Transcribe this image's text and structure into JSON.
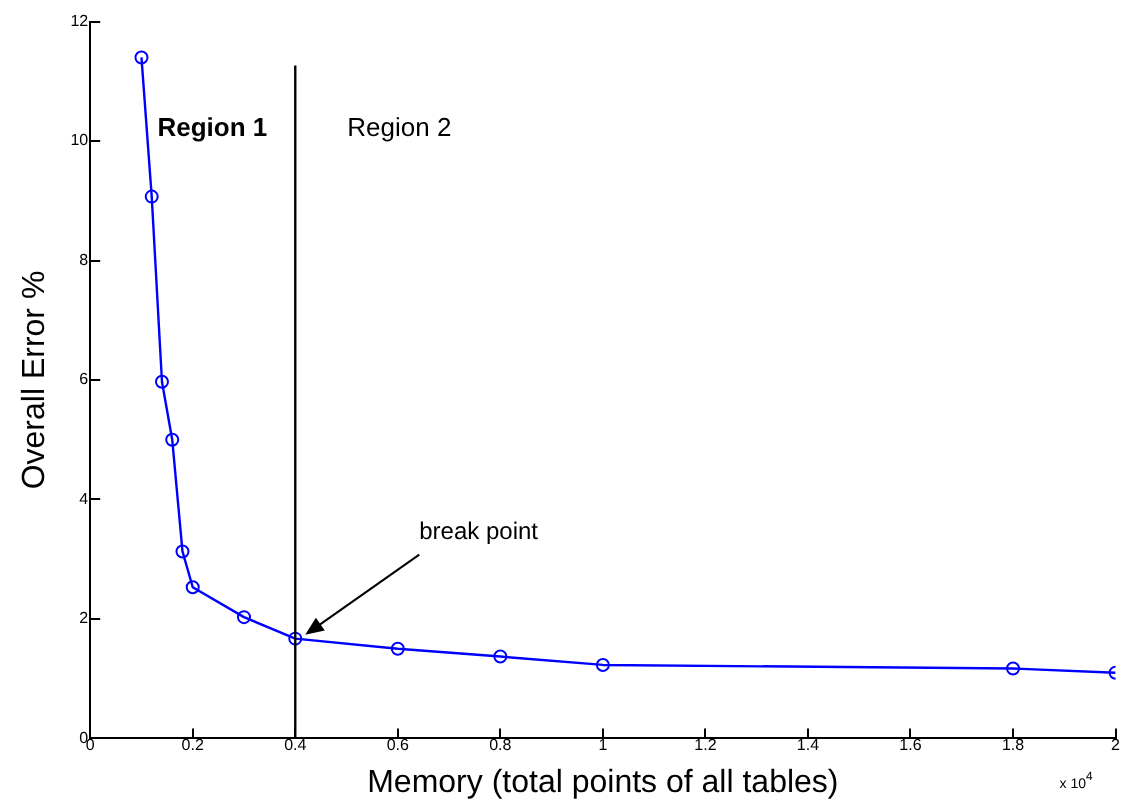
{
  "chart_data": {
    "type": "line",
    "xlabel": "Memory (total points of all tables)",
    "ylabel": "Overall Error %",
    "x": [
      0.1,
      0.12,
      0.14,
      0.16,
      0.18,
      0.2,
      0.3,
      0.4,
      0.6,
      0.8,
      1.0,
      1.8,
      2.0
    ],
    "series": [
      {
        "color": "#0000ff",
        "values": [
          11.4,
          9.07,
          5.97,
          5.0,
          3.13,
          2.53,
          2.03,
          1.67,
          1.5,
          1.37,
          1.23,
          1.17,
          1.1
        ]
      }
    ],
    "xlim": [
      0,
      2
    ],
    "xticks": [
      0,
      0.2,
      0.4,
      0.6,
      0.8,
      1,
      1.2,
      1.4,
      1.6,
      1.8,
      2
    ],
    "ylim": [
      0,
      12
    ],
    "yticks": [
      0,
      2,
      4,
      6,
      8,
      10,
      12
    ],
    "ref_lines": [
      {
        "axis": "x",
        "value": 0.4,
        "color": "#000000"
      }
    ],
    "annotations": [
      "Region 1",
      "Region 2",
      {
        "text": "break point",
        "x": 0.4,
        "y": 1.67
      },
      "x 10$^{4}$"
    ],
    "marker": "circle",
    "line_style": "solid",
    "grid": false,
    "legend": false
  }
}
